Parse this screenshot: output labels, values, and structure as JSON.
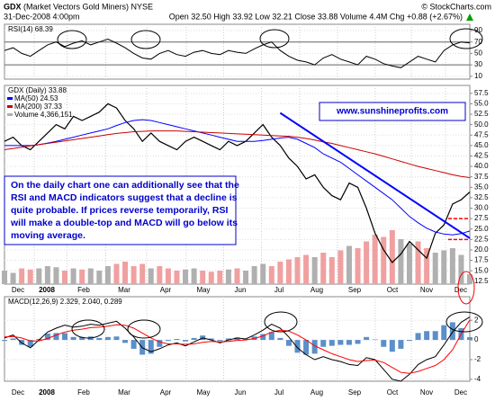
{
  "header": {
    "symbol": "GDX",
    "name": "(Market Vectors Gold Miners) NYSE",
    "source": "© StockCharts.com",
    "date": "31-Dec-2008 4:00pm",
    "quote": "Open 32.50  High 33.92  Low 32.21  Close 33.88  Volume 4.4M  Chg +0.88 (+2.67%)"
  },
  "months": [
    "Dec",
    "2008",
    "Feb",
    "Mar",
    "Apr",
    "May",
    "Jun",
    "Jul",
    "Aug",
    "Sep",
    "Oct",
    "Nov",
    "Dec"
  ],
  "annotations": {
    "website": "www.sunshineprofits.com",
    "note": [
      "On the daily chart one can additionally see that the",
      "RSI and MACD indicators suggest that a decline is",
      "quite probable. If prices reverse temporarily, RSI",
      "will make a double-top and MACD will go below its",
      "moving average."
    ]
  },
  "chart_data": [
    {
      "type": "line",
      "ylim": [
        5,
        101
      ],
      "yticks": [
        90,
        70,
        50,
        30,
        10
      ],
      "levels": [
        70,
        30
      ],
      "series": [
        {
          "name": "RSI(14) 68.39",
          "color": "#000000",
          "values": [
            55,
            60,
            50,
            45,
            55,
            65,
            70,
            62,
            68,
            72,
            65,
            70,
            75,
            68,
            60,
            50,
            42,
            40,
            50,
            55,
            48,
            45,
            52,
            55,
            50,
            48,
            55,
            52,
            50,
            58,
            65,
            70,
            55,
            45,
            38,
            35,
            30,
            42,
            48,
            40,
            35,
            30,
            45,
            40,
            32,
            28,
            25,
            35,
            45,
            40,
            35,
            55,
            65,
            70,
            68.39
          ]
        }
      ]
    },
    {
      "type": "line",
      "ylim": [
        11.8,
        59.4
      ],
      "yticks": [
        57.5,
        {
          "value": 55,
          "label": "55.0"
        },
        52.5,
        {
          "value": 50,
          "label": "50.0"
        },
        47.5,
        {
          "value": 45,
          "label": "45.0"
        },
        42.5,
        {
          "value": 40,
          "label": "40.0"
        },
        37.5,
        {
          "value": 35,
          "label": "35.0"
        },
        32.5,
        {
          "value": 30,
          "label": "30.0"
        },
        27.5,
        {
          "value": 25,
          "label": "25.0"
        },
        22.5,
        {
          "value": 20,
          "label": "20.0"
        },
        17.5,
        {
          "value": 15,
          "label": "15.0"
        },
        12.5
      ],
      "series": [
        {
          "name": "GDX (Daily) 33.88",
          "color": "#000000",
          "values": [
            46,
            47,
            45,
            44,
            46,
            48,
            50,
            49,
            52,
            51,
            52,
            53,
            55,
            54,
            51,
            49,
            46,
            48,
            46,
            45,
            44,
            46,
            47,
            46,
            45,
            44,
            46,
            45,
            46,
            48,
            50,
            47,
            45,
            42,
            40,
            37,
            38,
            35,
            33,
            32,
            36,
            35,
            30,
            24,
            20,
            17,
            19,
            22,
            20,
            18,
            24,
            26,
            31,
            32,
            33.88
          ]
        },
        {
          "name": "MA(50) 24.53",
          "color": "#0000ff",
          "values": [
            45,
            45,
            45,
            45,
            45.2,
            45.6,
            46,
            46.5,
            47,
            47.5,
            48,
            48.5,
            49,
            49.8,
            50.5,
            51,
            51.2,
            51,
            50.5,
            50,
            49.5,
            49,
            48.5,
            48,
            47.5,
            47,
            46.5,
            46,
            46,
            46,
            46.2,
            46.5,
            46.8,
            47,
            46.5,
            45.5,
            44.5,
            43,
            42,
            41,
            39.5,
            38,
            36.5,
            35,
            33.5,
            32,
            30,
            28,
            26.5,
            25.2,
            24.3,
            23.8,
            23.6,
            23.9,
            24.53
          ]
        },
        {
          "name": "MA(200) 37.33",
          "color": "#cc0000",
          "values": [
            44,
            44.3,
            44.6,
            44.9,
            45.2,
            45.5,
            45.8,
            46.1,
            46.4,
            46.7,
            47,
            47.3,
            47.6,
            47.9,
            48.1,
            48.3,
            48.4,
            48.5,
            48.5,
            48.5,
            48.5,
            48.4,
            48.3,
            48.2,
            48.1,
            48,
            47.9,
            47.8,
            47.7,
            47.6,
            47.5,
            47.4,
            47.3,
            47.2,
            47,
            46.7,
            46.3,
            45.9,
            45.5,
            45,
            44.5,
            44,
            43.5,
            43,
            42.4,
            41.8,
            41.2,
            40.6,
            40,
            39.5,
            39,
            38.5,
            38,
            37.6,
            37.33
          ]
        },
        {
          "name": "Volume 4,366,151",
          "color": "#b0b0b0",
          "axis": "volume",
          "values": [
            6000000,
            5000000,
            7000000,
            6500000,
            7000000,
            8000000,
            7500000,
            6000000,
            7000000,
            6500000,
            7000000,
            6000000,
            8000000,
            9000000,
            10000000,
            8000000,
            9000000,
            7000000,
            8000000,
            7000000,
            6000000,
            6500000,
            7000000,
            6000000,
            5500000,
            6000000,
            6500000,
            7000000,
            6000000,
            8000000,
            9000000,
            8000000,
            10000000,
            11000000,
            12000000,
            13000000,
            12000000,
            14000000,
            12000000,
            15000000,
            17000000,
            16000000,
            19000000,
            22000000,
            21000000,
            24000000,
            20000000,
            18000000,
            19000000,
            16000000,
            14000000,
            15000000,
            16000000,
            13000000,
            4366151
          ]
        }
      ],
      "trendline": {
        "x": [
          32,
          54
        ],
        "values": [
          52.8,
          22.8
        ],
        "color": "#0000ff"
      },
      "levels": {
        "values": [
          27.5,
          22.5
        ],
        "color": "#ff0000"
      }
    },
    {
      "type": "line",
      "title": "MACD(12,26,9) 2.329, 2.040, 0.289",
      "ylim": [
        -4.2,
        4.4
      ],
      "yticks": [
        2,
        0,
        -2,
        -4
      ],
      "histogram_color": "#5b8fc9",
      "series": [
        {
          "color": "#000000",
          "values": [
            0.2,
            0.5,
            -0.3,
            -0.8,
            0,
            0.8,
            1.2,
            1.5,
            1.3,
            1.4,
            1.6,
            1.5,
            1.7,
            1.9,
            1.2,
            0.3,
            -0.8,
            -1.2,
            -0.9,
            -0.5,
            -0.3,
            -0.6,
            -0.2,
            0.2,
            0,
            -0.3,
            0,
            0.2,
            0.1,
            0.5,
            1,
            1.6,
            1.2,
            0.3,
            -0.8,
            -1.5,
            -2,
            -1.7,
            -2,
            -2.2,
            -2.5,
            -2.6,
            -1.8,
            -2,
            -3,
            -4,
            -4.2,
            -3.5,
            -2.5,
            -2,
            -1.7,
            -0.5,
            0.8,
            1.8,
            2.329
          ]
        },
        {
          "color": "#ff0000",
          "values": [
            0.3,
            0.35,
            0.2,
            -0.1,
            -0.1,
            0.15,
            0.5,
            0.8,
            1,
            1.1,
            1.25,
            1.3,
            1.4,
            1.55,
            1.5,
            1.2,
            0.7,
            0.2,
            -0.2,
            -0.4,
            -0.4,
            -0.45,
            -0.4,
            -0.25,
            -0.15,
            -0.2,
            -0.15,
            -0.05,
            0,
            0.15,
            0.4,
            0.8,
            1,
            0.9,
            0.5,
            0,
            -0.6,
            -1,
            -1.4,
            -1.7,
            -2,
            -2.2,
            -2.1,
            -2.05,
            -2.3,
            -2.8,
            -3.3,
            -3.4,
            -3.2,
            -2.9,
            -2.6,
            -2.0,
            -1.0,
            0.6,
            2.04
          ]
        }
      ]
    }
  ]
}
